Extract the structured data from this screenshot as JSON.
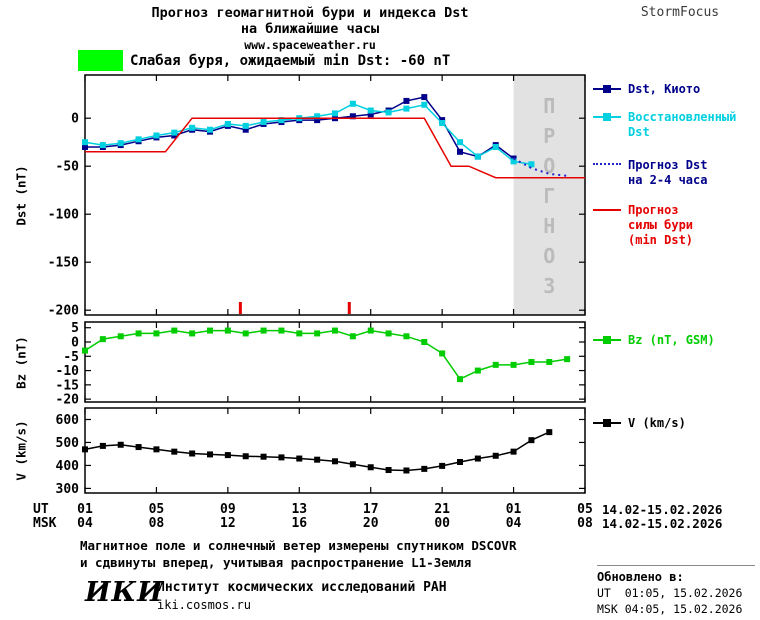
{
  "header": {
    "title1": "Прогноз геомагнитной бури и индекса Dst",
    "title2": "на ближайшие часы",
    "url": "www.spaceweather.ru",
    "brand": "StormFocus"
  },
  "alert": {
    "text": "Слабая буря, ожидаемый min Dst: -60 nT"
  },
  "colors": {
    "kyoto": "#00008b",
    "restored": "#00d0e0",
    "forecast_dst": "#2020cc",
    "storm": "#e60000",
    "bz": "#00cc00",
    "v": "#000000",
    "region": "#e2e2e2",
    "region_text": "#bbbbbb",
    "alert": "#00ff00"
  },
  "legend": {
    "dst_kyoto": "Dst, Киото",
    "restored1": "Восстановленный",
    "restored2": "Dst",
    "forecast1": "Прогноз Dst",
    "forecast2": "на 2-4 часа",
    "storm1": "Прогноз",
    "storm2": "силы бури",
    "storm3": "(min Dst)",
    "bz": "Bz (nT, GSM)",
    "v": "V (km/s)"
  },
  "axes": {
    "ut": "UT",
    "msk": "MSK",
    "ut_ticks": [
      "01",
      "05",
      "09",
      "13",
      "17",
      "21",
      "01",
      "05"
    ],
    "msk_ticks": [
      "04",
      "08",
      "12",
      "16",
      "20",
      "00",
      "04",
      "08"
    ],
    "ut_date": "14.02-15.02.2026",
    "msk_date": "14.02-15.02.2026"
  },
  "forecast_region_label": "ПРОГНОЗ",
  "chart_data": [
    {
      "type": "line",
      "title": "Прогноз геомагнитной бури и индекса Dst на ближайшие часы",
      "ylabel": "Dst (nT)",
      "ylim": [
        -205,
        45
      ],
      "yticks": [
        0,
        -50,
        -100,
        -150,
        -200
      ],
      "xlim": [
        1,
        29
      ],
      "xticks_hours": [
        1,
        5,
        9,
        13,
        17,
        21,
        25,
        29
      ],
      "forecast_region_start_hour": 25,
      "event_marks_hours": [
        9.7,
        15.8
      ],
      "series": [
        {
          "id": "dst-kyoto",
          "name": "Dst, Киото",
          "color_key": "kyoto",
          "marker": true,
          "x": [
            1,
            2,
            3,
            4,
            5,
            6,
            7,
            8,
            9,
            10,
            11,
            12,
            13,
            14,
            15,
            16,
            17,
            18,
            19,
            20,
            21,
            22,
            23,
            24,
            25
          ],
          "values": [
            -30,
            -30,
            -28,
            -24,
            -20,
            -18,
            -12,
            -14,
            -8,
            -12,
            -6,
            -4,
            -2,
            -2,
            0,
            2,
            4,
            8,
            18,
            22,
            -2,
            -35,
            -40,
            -28,
            -42
          ]
        },
        {
          "id": "dst-restored",
          "name": "Восстановленный Dst",
          "color_key": "restored",
          "marker": true,
          "x": [
            1,
            2,
            3,
            4,
            5,
            6,
            7,
            8,
            9,
            10,
            11,
            12,
            13,
            14,
            15,
            16,
            17,
            18,
            19,
            20,
            21,
            22,
            23,
            24,
            25,
            26
          ],
          "values": [
            -25,
            -28,
            -26,
            -22,
            -18,
            -15,
            -10,
            -12,
            -6,
            -8,
            -4,
            -2,
            0,
            2,
            5,
            15,
            8,
            6,
            10,
            14,
            -5,
            -25,
            -40,
            -30,
            -45,
            -48
          ]
        },
        {
          "id": "dst-forecast",
          "name": "Прогноз Dst на 2-4 часа",
          "color_key": "forecast_dst",
          "dotted": true,
          "x": [
            25,
            26,
            27,
            28
          ],
          "values": [
            -42,
            -52,
            -58,
            -60
          ]
        },
        {
          "id": "storm-forecast",
          "name": "Прогноз силы бури (min Dst)",
          "color_key": "storm",
          "x": [
            1,
            5.5,
            7,
            20,
            21.5,
            22.5,
            24,
            29
          ],
          "values": [
            -35,
            -35,
            0,
            0,
            -50,
            -50,
            -62,
            -62
          ]
        }
      ]
    },
    {
      "type": "line",
      "ylabel": "Bz (nT)",
      "ylim": [
        -21,
        7
      ],
      "yticks": [
        5,
        0,
        -5,
        -10,
        -15,
        -20
      ],
      "xlim": [
        1,
        29
      ],
      "xticks_hours": [
        1,
        5,
        9,
        13,
        17,
        21,
        25,
        29
      ],
      "series": [
        {
          "id": "bz",
          "name": "Bz (nT, GSM)",
          "color_key": "bz",
          "marker": true,
          "x": [
            1,
            2,
            3,
            4,
            5,
            6,
            7,
            8,
            9,
            10,
            11,
            12,
            13,
            14,
            15,
            16,
            17,
            18,
            19,
            20,
            21,
            22,
            23,
            24,
            25,
            26,
            27,
            28
          ],
          "values": [
            -3,
            1,
            2,
            3,
            3,
            4,
            3,
            4,
            4,
            3,
            4,
            4,
            3,
            3,
            4,
            2,
            4,
            3,
            2,
            0,
            -4,
            -13,
            -10,
            -8,
            -8,
            -7,
            -7,
            -6
          ]
        }
      ]
    },
    {
      "type": "line",
      "ylabel": "V (km/s)",
      "ylim": [
        280,
        650
      ],
      "yticks": [
        600,
        500,
        400,
        300
      ],
      "xlim": [
        1,
        29
      ],
      "xticks_hours": [
        1,
        5,
        9,
        13,
        17,
        21,
        25,
        29
      ],
      "series": [
        {
          "id": "v",
          "name": "V (km/s)",
          "color_key": "v",
          "marker": true,
          "x": [
            1,
            2,
            3,
            4,
            5,
            6,
            7,
            8,
            9,
            10,
            11,
            12,
            13,
            14,
            15,
            16,
            17,
            18,
            19,
            20,
            21,
            22,
            23,
            24,
            25,
            26,
            27
          ],
          "values": [
            470,
            485,
            490,
            480,
            470,
            460,
            452,
            448,
            445,
            440,
            438,
            435,
            430,
            425,
            418,
            405,
            392,
            380,
            378,
            385,
            398,
            415,
            430,
            442,
            460,
            510,
            545
          ]
        }
      ]
    }
  ],
  "footer": {
    "note1": "Магнитное поле и солнечный ветер измерены спутником DSCOVR",
    "note2": "и сдвинуты вперед, учитывая распространение L1-Земля",
    "logo": "ИКИ",
    "institute": "Институт космических исследований РАН",
    "site": "iki.cosmos.ru",
    "updated_label": "Обновлено в:",
    "updated_ut": "UT  01:05, 15.02.2026",
    "updated_msk": "MSK 04:05, 15.02.2026"
  }
}
